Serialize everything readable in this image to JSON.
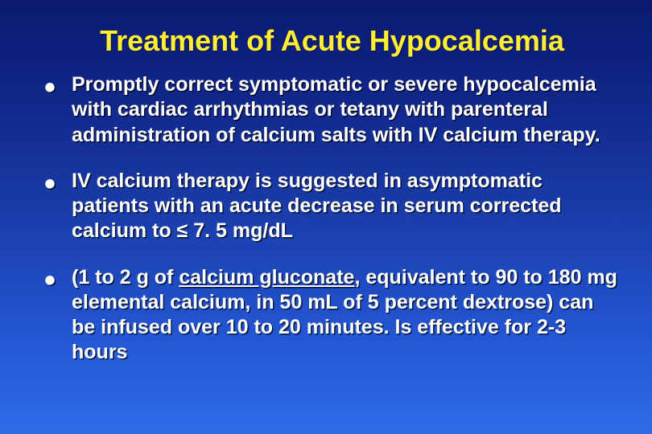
{
  "slide": {
    "title": "Treatment of Acute Hypocalcemia",
    "title_color": "#ffee33",
    "title_fontsize": 36,
    "background_gradient": {
      "top_color": "#0a1a6e",
      "bottom_color": "#2e6ce8"
    },
    "body_fontsize": 25,
    "body_color": "#ffffff",
    "bullets": [
      {
        "text_before": "Promptly correct symptomatic or severe hypocalcemia with cardiac arrhythmias or tetany with parenteral administration of calcium salts with IV calcium therapy.",
        "link_text": "",
        "text_after": ""
      },
      {
        "text_before": "IV calcium therapy is suggested in asymptomatic patients with an acute decrease in serum corrected calcium to ≤ 7. 5 mg/dL",
        "link_text": "",
        "text_after": ""
      },
      {
        "text_before": "(1 to 2 g of ",
        "link_text": "calcium gluconate",
        "text_after": ", equivalent to 90 to 180 mg elemental calcium, in 50 mL of 5 percent dextrose) can be infused over 10 to 20 minutes. Is effective for 2-3 hours"
      }
    ]
  }
}
